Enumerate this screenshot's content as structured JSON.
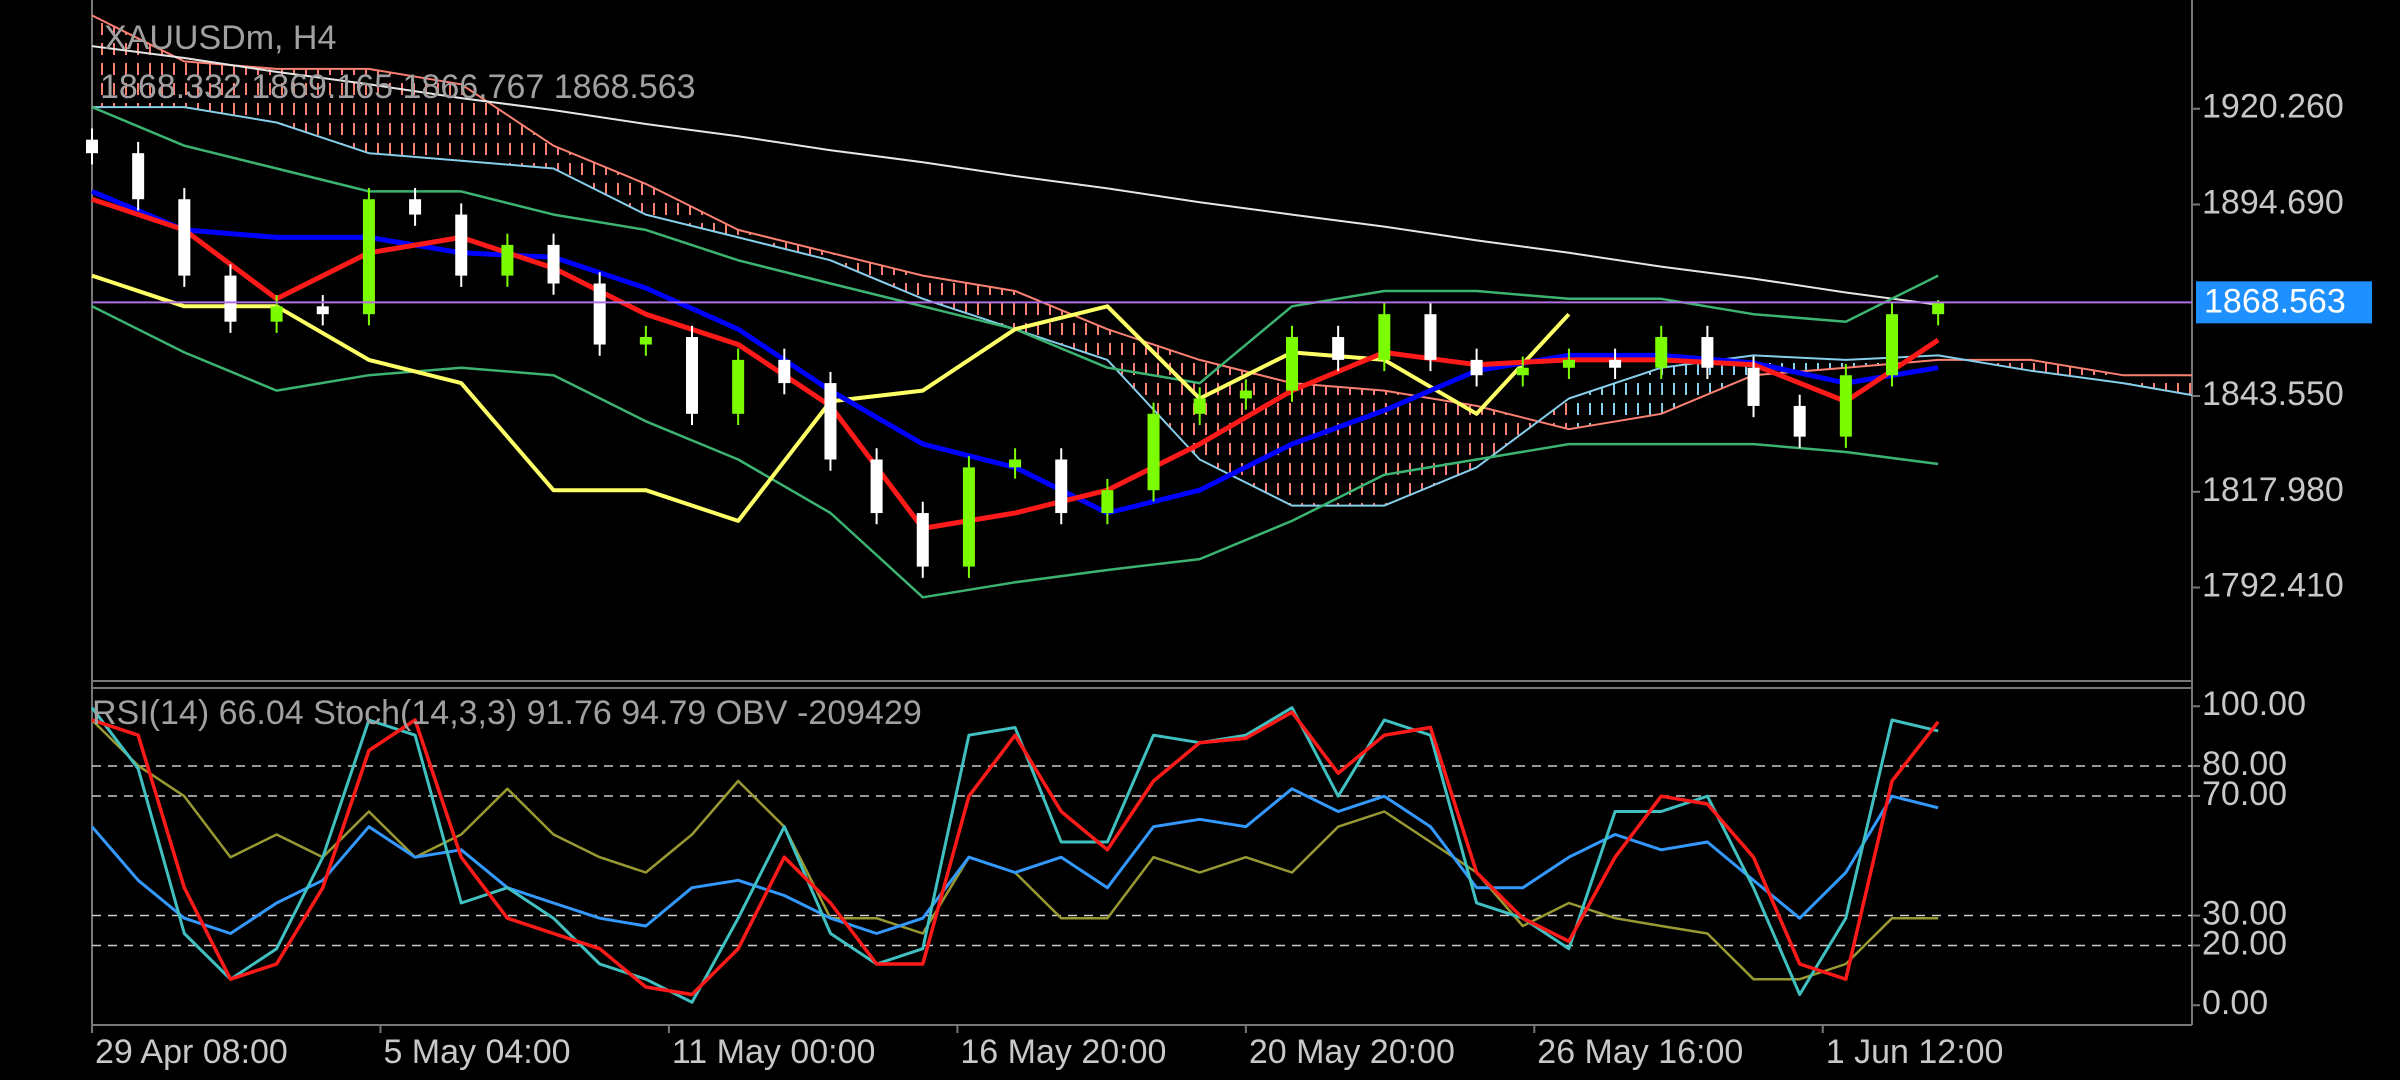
{
  "chart_data": [
    {
      "type": "candlestick",
      "title": "XAUUSDm, H4",
      "subtitle": "1868.332 1869.165 1866.767 1868.563",
      "xlim": [
        0,
        182
      ],
      "ylim": [
        1767.45,
        1949.3
      ],
      "yticks": [
        {
          "value": 1920.26,
          "label": "1920.260"
        },
        {
          "value": 1894.69,
          "label": "1894.690"
        },
        {
          "value": 1843.55,
          "label": "1843.550"
        },
        {
          "value": 1817.98,
          "label": "1817.980"
        },
        {
          "value": 1792.41,
          "label": "1792.410"
        }
      ],
      "current_price": 1868.563,
      "current_line_color": "#b070e0",
      "current_box_color": "#1e90ff",
      "candles": {
        "x": [
          0,
          4,
          8,
          12,
          16,
          20,
          24,
          28,
          32,
          36,
          40,
          44,
          48,
          52,
          56,
          60,
          64,
          68,
          72,
          76,
          80,
          84,
          88,
          92,
          96,
          100,
          104,
          108,
          112,
          116,
          120,
          124,
          128,
          132,
          136,
          140,
          144,
          148,
          152,
          156,
          160
        ],
        "open": [
          1912.0,
          1908.4,
          1896.1,
          1875.7,
          1863.4,
          1867.5,
          1865.4,
          1896.1,
          1892.0,
          1875.7,
          1883.9,
          1873.6,
          1857.3,
          1859.3,
          1838.8,
          1853.2,
          1847.0,
          1826.6,
          1812.3,
          1798.0,
          1824.5,
          1826.6,
          1812.3,
          1818.4,
          1838.8,
          1842.9,
          1845.0,
          1859.3,
          1853.2,
          1865.4,
          1853.2,
          1849.1,
          1851.1,
          1853.2,
          1851.1,
          1859.3,
          1851.1,
          1840.9,
          1832.7,
          1849.1,
          1865.4
        ],
        "high": [
          1915.0,
          1911.4,
          1899.1,
          1878.7,
          1870.5,
          1870.5,
          1899.1,
          1899.1,
          1895.0,
          1886.9,
          1886.9,
          1876.6,
          1862.3,
          1862.3,
          1856.2,
          1856.2,
          1850.0,
          1829.6,
          1815.3,
          1827.5,
          1829.6,
          1829.6,
          1821.4,
          1841.8,
          1845.9,
          1848.0,
          1862.3,
          1862.3,
          1868.4,
          1868.4,
          1856.2,
          1854.1,
          1856.2,
          1856.2,
          1862.3,
          1862.3,
          1854.1,
          1843.9,
          1852.1,
          1868.4,
          1869.165
        ],
        "low": [
          1905.4,
          1893.1,
          1872.7,
          1860.4,
          1860.4,
          1862.4,
          1862.4,
          1889.0,
          1872.7,
          1872.7,
          1870.6,
          1854.3,
          1854.3,
          1835.8,
          1835.8,
          1844.0,
          1823.6,
          1809.3,
          1795.0,
          1795.0,
          1821.5,
          1809.3,
          1809.3,
          1815.4,
          1835.8,
          1839.9,
          1842.0,
          1850.2,
          1850.2,
          1850.2,
          1846.1,
          1846.1,
          1848.1,
          1848.1,
          1848.1,
          1848.1,
          1837.9,
          1829.7,
          1829.7,
          1846.1,
          1862.4
        ],
        "close": [
          1908.4,
          1896.1,
          1875.7,
          1863.4,
          1867.5,
          1865.4,
          1896.1,
          1892.0,
          1875.7,
          1883.9,
          1873.6,
          1857.3,
          1859.3,
          1838.8,
          1853.2,
          1847.0,
          1826.6,
          1812.3,
          1798.0,
          1824.5,
          1826.6,
          1812.3,
          1818.4,
          1838.8,
          1842.9,
          1845.0,
          1859.3,
          1853.2,
          1865.4,
          1853.2,
          1849.1,
          1851.1,
          1853.2,
          1851.1,
          1859.3,
          1851.1,
          1840.9,
          1832.7,
          1849.1,
          1865.4,
          1868.563
        ],
        "up_color": "#7cfc00",
        "down_color": "#ffffff"
      },
      "cloud": {
        "x": [
          0,
          8,
          16,
          24,
          32,
          40,
          48,
          56,
          64,
          72,
          80,
          88,
          96,
          104,
          112,
          120,
          128,
          136,
          144,
          152,
          160,
          168,
          176,
          182
        ],
        "span_a": [
          1945.2,
          1932.9,
          1930.9,
          1930.9,
          1926.8,
          1910.4,
          1900.2,
          1887.9,
          1881.8,
          1875.7,
          1871.6,
          1861.4,
          1853.2,
          1847.0,
          1845.0,
          1840.9,
          1834.7,
          1838.8,
          1849.1,
          1851.1,
          1853.2,
          1853.2,
          1849.1,
          1849.1
        ],
        "span_b": [
          1920.7,
          1920.7,
          1916.6,
          1908.4,
          1906.4,
          1904.3,
          1892.0,
          1885.9,
          1879.8,
          1869.5,
          1861.4,
          1853.2,
          1826.6,
          1814.3,
          1814.3,
          1824.5,
          1842.9,
          1851.1,
          1854.4,
          1853.2,
          1854.4,
          1850.3,
          1847.0,
          1843.8
        ],
        "color_a": "#fa8072",
        "color_b": "#87ceeb"
      },
      "x": [
        0,
        8,
        16,
        24,
        32,
        40,
        48,
        56,
        64,
        72,
        80,
        88,
        96,
        104,
        112,
        120,
        128,
        136,
        144,
        152,
        160
      ],
      "series": [
        {
          "color": "#e6e6e6",
          "values": [
            1937.0,
            1933.8,
            1930.1,
            1926.8,
            1923.1,
            1919.9,
            1916.2,
            1912.9,
            1909.2,
            1906.0,
            1902.3,
            1899.0,
            1895.3,
            1892.0,
            1888.8,
            1885.1,
            1881.8,
            1878.1,
            1874.9,
            1871.2,
            1867.9
          ]
        },
        {
          "color": "#3cb371",
          "values": [
            1920.7,
            1910.4,
            1904.3,
            1898.2,
            1898.2,
            1892.0,
            1887.9,
            1879.8,
            1873.6,
            1867.5,
            1861.4,
            1851.1,
            1847.0,
            1867.5,
            1871.6,
            1871.6,
            1869.5,
            1869.5,
            1865.4,
            1863.4,
            1875.7
          ]
        },
        {
          "color": "#3cb371",
          "values": [
            1867.5,
            1855.2,
            1845.0,
            1849.1,
            1851.1,
            1849.1,
            1836.8,
            1826.6,
            1812.3,
            1789.8,
            1793.8,
            1797.1,
            1800.0,
            1810.2,
            1822.5,
            1826.6,
            1830.7,
            1830.7,
            1830.7,
            1828.6,
            1825.4
          ]
        },
        {
          "color": "#ffff66",
          "values": [
            1875.7,
            1867.5,
            1867.5,
            1853.2,
            1847.0,
            1818.4,
            1818.4,
            1810.2,
            1842.1,
            1845.0,
            1861.4,
            1867.5,
            1842.9,
            1855.2,
            1853.2,
            1838.8,
            1865.4,
            null,
            null,
            null,
            null
          ]
        },
        {
          "color": "#0000ff",
          "values": [
            1898.2,
            1887.9,
            1885.9,
            1885.9,
            1881.8,
            1880.6,
            1872.4,
            1861.4,
            1845.0,
            1830.7,
            1824.5,
            1812.3,
            1818.4,
            1830.7,
            1839.7,
            1850.3,
            1854.4,
            1854.4,
            1852.4,
            1847.0,
            1851.1
          ]
        },
        {
          "color": "#ff1a1a",
          "values": [
            1896.1,
            1887.9,
            1869.5,
            1881.8,
            1885.9,
            1877.7,
            1865.4,
            1857.3,
            1840.9,
            1808.2,
            1812.3,
            1818.4,
            1830.7,
            1845.0,
            1855.2,
            1851.9,
            1853.2,
            1853.2,
            1851.9,
            1842.1,
            1858.5
          ]
        }
      ]
    },
    {
      "type": "line",
      "title": "RSI(14) 66.04 Stoch(14,3,3) 91.76 94.79 OBV -209429",
      "xlim": [
        0,
        182
      ],
      "xticks": [
        {
          "value": 0,
          "label": "29 Apr 08:00"
        },
        {
          "value": 25,
          "label": "5 May 04:00"
        },
        {
          "value": 50,
          "label": "11 May 00:00"
        },
        {
          "value": 75,
          "label": "16 May 20:00"
        },
        {
          "value": 100,
          "label": "20 May 20:00"
        },
        {
          "value": 125,
          "label": "26 May 16:00"
        },
        {
          "value": 150,
          "label": "1 Jun 12:00"
        }
      ],
      "ylim": [
        -6.6,
        106.1
      ],
      "yticks": [
        {
          "value": 100,
          "label": "100.00"
        },
        {
          "value": 80,
          "label": "80.00"
        },
        {
          "value": 70,
          "label": "70.00"
        },
        {
          "value": 30,
          "label": "30.00"
        },
        {
          "value": 20,
          "label": "20.00"
        },
        {
          "value": 0,
          "label": "0.00"
        }
      ],
      "levels": [
        80,
        70,
        30,
        20
      ],
      "level_color": "#cccccc",
      "x": [
        0,
        4,
        8,
        12,
        16,
        20,
        24,
        28,
        32,
        36,
        40,
        44,
        48,
        52,
        56,
        60,
        64,
        68,
        72,
        76,
        80,
        84,
        88,
        92,
        96,
        100,
        104,
        108,
        112,
        116,
        120,
        124,
        128,
        132,
        136,
        140,
        144,
        148,
        152,
        156,
        160
      ],
      "series": [
        {
          "color": "#999933",
          "values": [
            95.4,
            80.1,
            69.9,
            49.5,
            57.1,
            49.5,
            64.8,
            49.5,
            57.1,
            72.4,
            57.1,
            49.5,
            44.4,
            57.1,
            75.0,
            59.7,
            29.1,
            29.1,
            24.0,
            49.5,
            44.4,
            29.1,
            29.1,
            49.5,
            44.4,
            49.5,
            44.4,
            59.7,
            64.8,
            54.6,
            44.4,
            26.5,
            34.2,
            29.1,
            26.5,
            24.0,
            8.7,
            8.7,
            13.8,
            29.1,
            29.1
          ]
        },
        {
          "color": "#3399ff",
          "values": [
            59.7,
            41.8,
            29.1,
            24.0,
            34.2,
            41.8,
            59.7,
            49.5,
            52.0,
            39.3,
            34.2,
            29.1,
            26.5,
            39.3,
            41.8,
            36.7,
            29.1,
            24.0,
            29.1,
            49.5,
            44.4,
            49.5,
            39.3,
            59.7,
            62.2,
            59.7,
            72.4,
            64.8,
            69.9,
            59.7,
            39.3,
            39.3,
            49.5,
            57.1,
            52.0,
            54.6,
            41.8,
            29.1,
            44.4,
            69.9,
            66.04
          ]
        },
        {
          "color": "#40c0c0",
          "values": [
            99.5,
            79.1,
            24.0,
            8.7,
            18.9,
            49.5,
            95.4,
            90.3,
            34.2,
            39.3,
            29.1,
            13.8,
            8.7,
            1.0,
            29.1,
            59.7,
            24.0,
            13.8,
            18.9,
            90.3,
            92.9,
            54.6,
            54.6,
            90.3,
            87.8,
            90.3,
            99.5,
            69.9,
            95.4,
            90.3,
            34.2,
            29.1,
            18.9,
            64.8,
            64.8,
            69.9,
            39.3,
            3.6,
            29.1,
            95.4,
            91.76
          ]
        },
        {
          "color": "#ff1a1a",
          "values": [
            95.4,
            90.3,
            39.3,
            8.7,
            13.8,
            39.3,
            85.2,
            95.4,
            49.5,
            29.1,
            24.0,
            18.9,
            6.1,
            3.6,
            18.9,
            49.5,
            34.2,
            13.8,
            13.8,
            69.9,
            90.3,
            64.8,
            52.0,
            75.0,
            87.8,
            89.3,
            98.0,
            77.6,
            90.3,
            92.9,
            44.4,
            29.1,
            21.4,
            49.5,
            69.9,
            67.3,
            49.5,
            13.8,
            8.7,
            75.0,
            94.79
          ]
        }
      ]
    }
  ]
}
